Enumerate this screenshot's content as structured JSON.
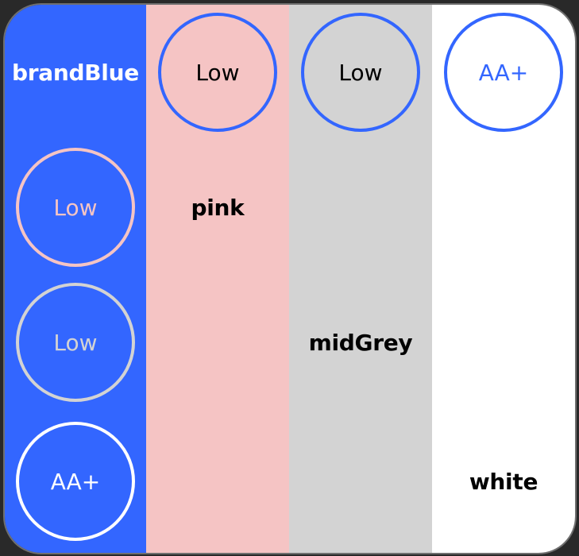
{
  "colors": {
    "brandBlue": "#3366ff",
    "pink": "#f5c4c4",
    "midGrey": "#d3d3d3",
    "white": "#ffffff",
    "black": "#000000"
  },
  "swatches": {
    "brandBlue": {
      "label": "brandBlue"
    },
    "pink": {
      "label": "pink"
    },
    "midGrey": {
      "label": "midGrey"
    },
    "white": {
      "label": "white"
    }
  },
  "pairs": {
    "pink_on_blue_rating": "Low",
    "grey_on_blue_rating": "Low",
    "white_on_blue_rating": "AA+",
    "blue_on_pink_rating": "Low",
    "blue_on_grey_rating": "Low",
    "blue_on_white_rating": "AA+"
  }
}
